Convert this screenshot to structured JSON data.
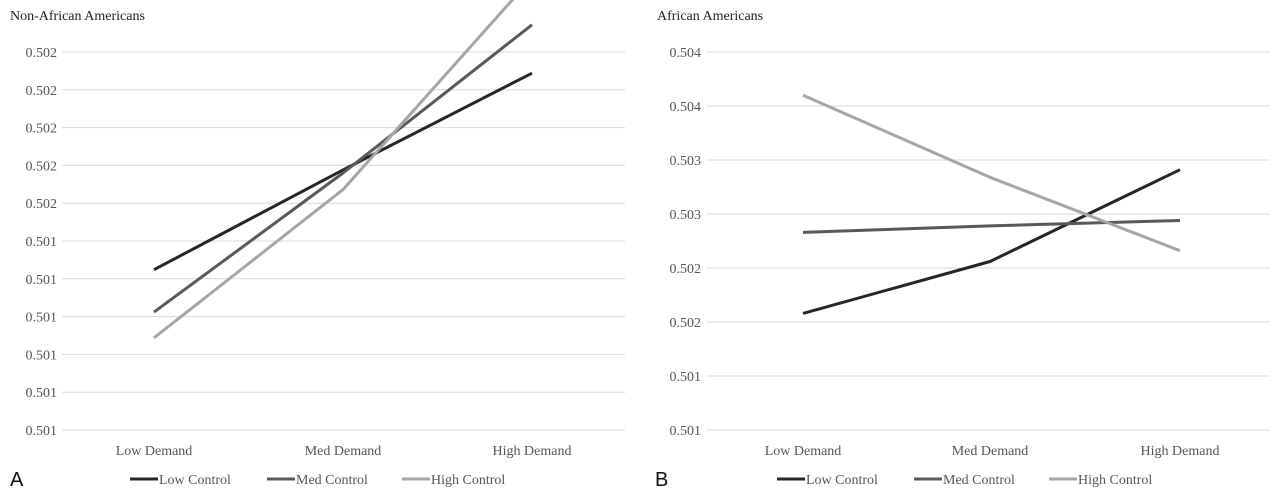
{
  "chart_data": [
    {
      "type": "line",
      "panel": "A",
      "title": "Non-African Americans",
      "categories": [
        "Low Demand",
        "Med Demand",
        "High Demand"
      ],
      "yticks": [
        "0.501",
        "0.501",
        "0.501",
        "0.501",
        "0.501",
        "0.501",
        "0.502",
        "0.502",
        "0.502",
        "0.502",
        "0.502"
      ],
      "ylim": [
        0.5,
        0.5025
      ],
      "grid": true,
      "legend_position": "bottom",
      "series": [
        {
          "name": "Low Control",
          "color": "#262626",
          "values": [
            0.50106,
            0.50172,
            0.50236
          ]
        },
        {
          "name": "Med Control",
          "color": "#595959",
          "values": [
            0.50078,
            0.5017,
            0.50268
          ]
        },
        {
          "name": "High Control",
          "color": "#a6a6a6",
          "values": [
            0.50061,
            0.50159,
            0.50299
          ]
        }
      ]
    },
    {
      "type": "line",
      "panel": "B",
      "title": "African Americans",
      "categories": [
        "Low Demand",
        "Med Demand",
        "High Demand"
      ],
      "yticks": [
        "0.501",
        "0.501",
        "0.502",
        "0.502",
        "0.503",
        "0.503",
        "0.504",
        "0.504"
      ],
      "ylim": [
        0.501,
        0.5045
      ],
      "grid": true,
      "legend_position": "bottom",
      "series": [
        {
          "name": "Low Control",
          "color": "#262626",
          "values": [
            0.50208,
            0.50256,
            0.50341
          ]
        },
        {
          "name": "Med Control",
          "color": "#595959",
          "values": [
            0.50283,
            0.50289,
            0.50294
          ]
        },
        {
          "name": "High Control",
          "color": "#a6a6a6",
          "values": [
            0.5041,
            0.50334,
            0.50266
          ]
        }
      ]
    }
  ]
}
